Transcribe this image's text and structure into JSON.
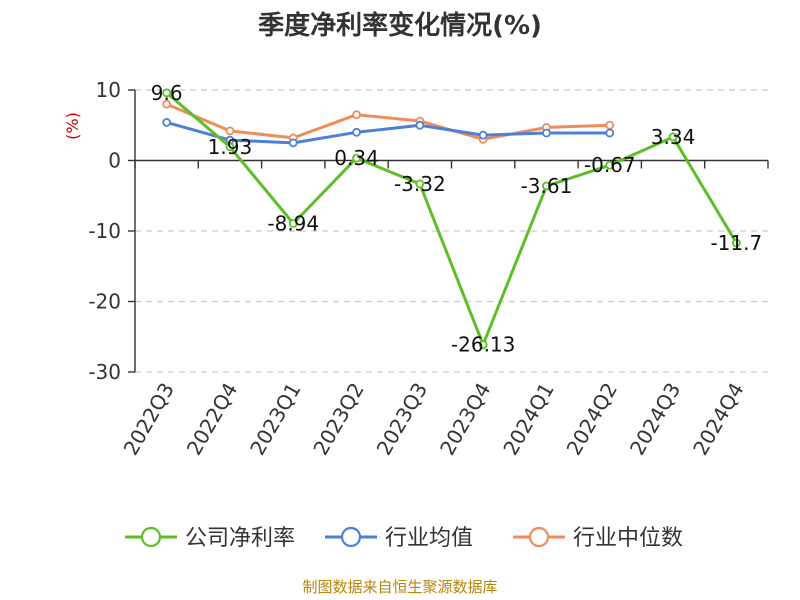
{
  "chart_data": {
    "type": "line",
    "title": "季度净利率变化情况(%)",
    "ylabel": "(%)",
    "xlabel": "",
    "ylim": [
      -30,
      10
    ],
    "yticks": [
      10,
      0,
      -10,
      -20,
      -30
    ],
    "grid": true,
    "legend_position": "bottom",
    "categories": [
      "2022Q3",
      "2022Q4",
      "2023Q1",
      "2023Q2",
      "2023Q3",
      "2023Q4",
      "2024Q1",
      "2024Q2",
      "2024Q3",
      "2024Q4"
    ],
    "series": [
      {
        "name": "公司净利率",
        "color": "#5cbf27",
        "values": [
          9.6,
          1.93,
          -8.94,
          0.34,
          -3.32,
          -26.13,
          -3.61,
          -0.67,
          3.34,
          -11.7
        ],
        "labels": [
          "9.6",
          "1.93",
          "-8.94",
          "0.34",
          "-3.32",
          "-26.13",
          "-3.61",
          "-0.67",
          "3.34",
          "-11.7"
        ]
      },
      {
        "name": "行业均值",
        "color": "#4f7fd8",
        "values": [
          5.4,
          2.9,
          2.5,
          4.0,
          5.0,
          3.6,
          3.9,
          3.9,
          null,
          null
        ]
      },
      {
        "name": "行业中位数",
        "color": "#f08c5a",
        "values": [
          8.0,
          4.2,
          3.2,
          6.5,
          5.6,
          3.0,
          4.7,
          5.0,
          null,
          null
        ]
      }
    ]
  },
  "source": "制图数据来自恒生聚源数据库"
}
